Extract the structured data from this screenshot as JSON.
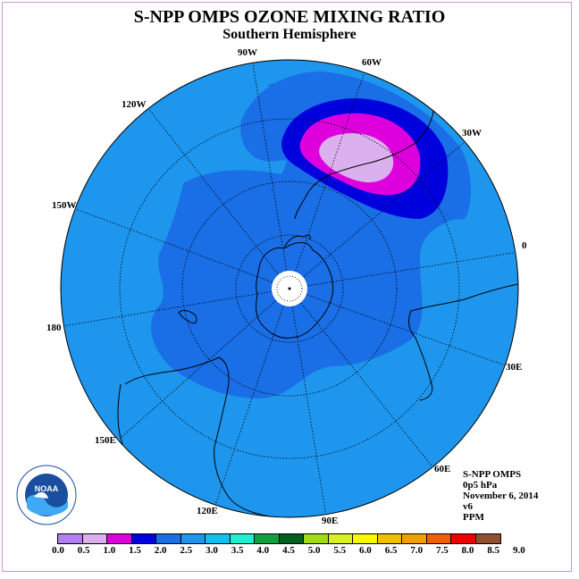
{
  "header": {
    "title": "S-NPP OMPS OZONE MIXING RATIO",
    "subtitle": "Southern Hemisphere"
  },
  "map": {
    "projection": "south-polar-stereographic",
    "longitude_labels": [
      "90W",
      "60W",
      "30W",
      "0",
      "30E",
      "60E",
      "90E",
      "120E",
      "150E",
      "180",
      "150W",
      "120W"
    ],
    "ozone_field_colors": {
      "1.0-1.5": "#dd00dd",
      "1.5-2.0": "#0000dd",
      "2.0-2.5": "#1a6ee6",
      "2.5-3.0": "#1e96ee",
      "0.5-1.0": "#dbb0ee",
      "no-data": "#ffffff"
    }
  },
  "info": {
    "instrument": "S-NPP OMPS",
    "level": "0p5 hPa",
    "date": "November 6, 2014",
    "version": "v6",
    "units": "PPM"
  },
  "logo": {
    "text": "NOAA",
    "ring_text": "NATIONAL OCEANIC AND ATMOSPHERIC ADMINISTRATION · U.S. DEPARTMENT OF COMMERCE"
  },
  "colorbar": {
    "colors": [
      "#b07ff0",
      "#dbb0ee",
      "#dd00dd",
      "#0000dd",
      "#1a6ee6",
      "#1e96ee",
      "#10c0f0",
      "#20f0d0",
      "#10a040",
      "#006020",
      "#a0dd10",
      "#d8f020",
      "#f8f800",
      "#f0c000",
      "#f0a000",
      "#f06000",
      "#f00000",
      "#905030"
    ],
    "tick_labels": [
      "0.0",
      "0.5",
      "1.0",
      "1.5",
      "2.0",
      "2.5",
      "3.0",
      "3.5",
      "4.0",
      "4.5",
      "5.0",
      "5.5",
      "6.0",
      "6.5",
      "7.0",
      "7.5",
      "8.0",
      "8.5",
      "9.0"
    ]
  }
}
